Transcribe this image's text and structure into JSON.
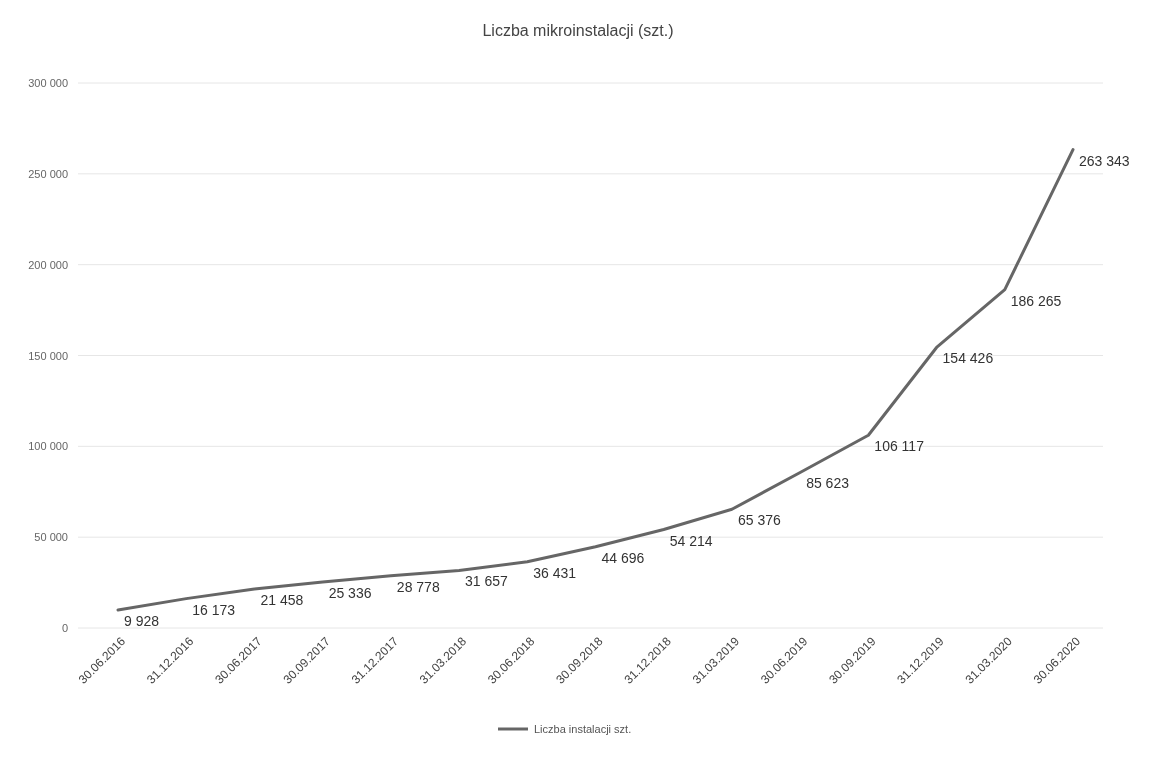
{
  "chart_data": {
    "type": "line",
    "title": "Liczba mikroinstalacji (szt.)",
    "categories": [
      "30.06.2016",
      "31.12.2016",
      "30.06.2017",
      "30.09.2017",
      "31.12.2017",
      "31.03.2018",
      "30.06.2018",
      "30.09.2018",
      "31.12.2018",
      "31.03.2019",
      "30.06.2019",
      "30.09.2019",
      "31.12.2019",
      "31.03.2020",
      "30.06.2020"
    ],
    "series": [
      {
        "name": "Liczba instalacji szt.",
        "color": "#666666",
        "values": [
          9928,
          16173,
          21458,
          25336,
          28778,
          31657,
          36431,
          44696,
          54214,
          65376,
          85623,
          106117,
          154426,
          186265,
          263343
        ],
        "value_labels": [
          "9 928",
          "16 173",
          "21 458",
          "25 336",
          "28 778",
          "31 657",
          "36 431",
          "44 696",
          "54 214",
          "65 376",
          "85 623",
          "106 117",
          "154 426",
          "186 265",
          "263 343"
        ]
      }
    ],
    "ylim": [
      0,
      300000
    ],
    "yticks": [
      {
        "value": 0,
        "label": "0"
      },
      {
        "value": 50000,
        "label": "50 000"
      },
      {
        "value": 100000,
        "label": "100 000"
      },
      {
        "value": 150000,
        "label": "150 000"
      },
      {
        "value": 200000,
        "label": "200 000"
      },
      {
        "value": 250000,
        "label": "250 000"
      },
      {
        "value": 300000,
        "label": "300 000"
      }
    ],
    "grid": "y",
    "legend": "bottom",
    "marker": "none",
    "line_style": "solid"
  }
}
